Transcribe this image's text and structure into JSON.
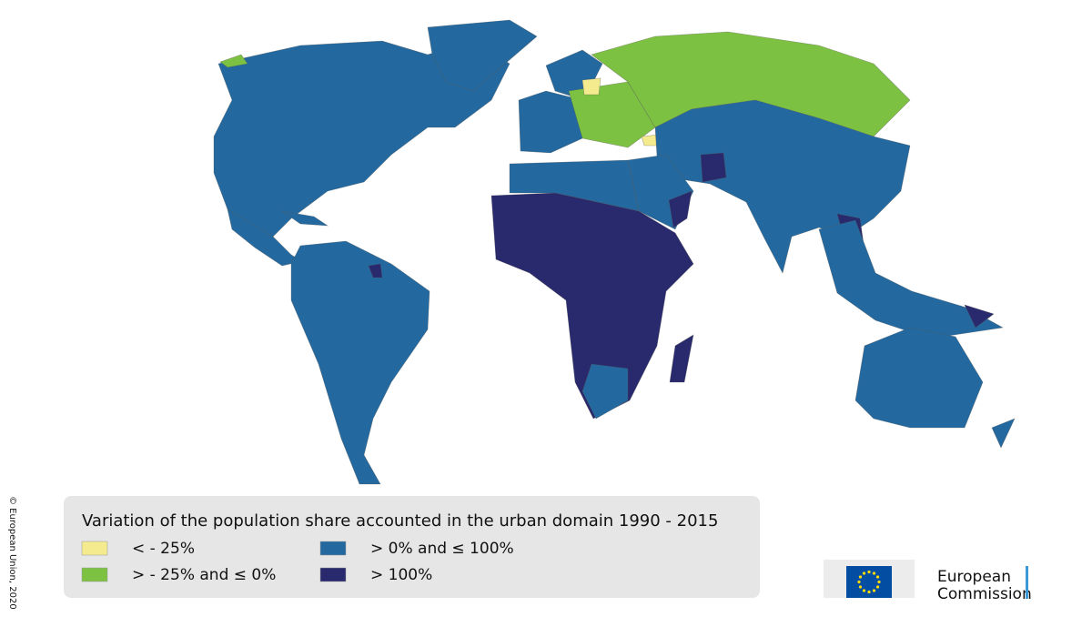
{
  "legend": {
    "title": "Variation of the population share accounted in the urban domain 1990 - 2015",
    "items": [
      {
        "label": "< - 25%",
        "color": "#f4ea8e"
      },
      {
        "label": "> - 25% and ≤ 0%",
        "color": "#7dc142"
      },
      {
        "label": "> 0% and ≤ 100%",
        "color": "#23699f"
      },
      {
        "label": "> 100%",
        "color": "#29296d"
      }
    ]
  },
  "copyright": "© European Union, 2020",
  "logo": {
    "lines": [
      "European",
      "Commission"
    ]
  }
}
